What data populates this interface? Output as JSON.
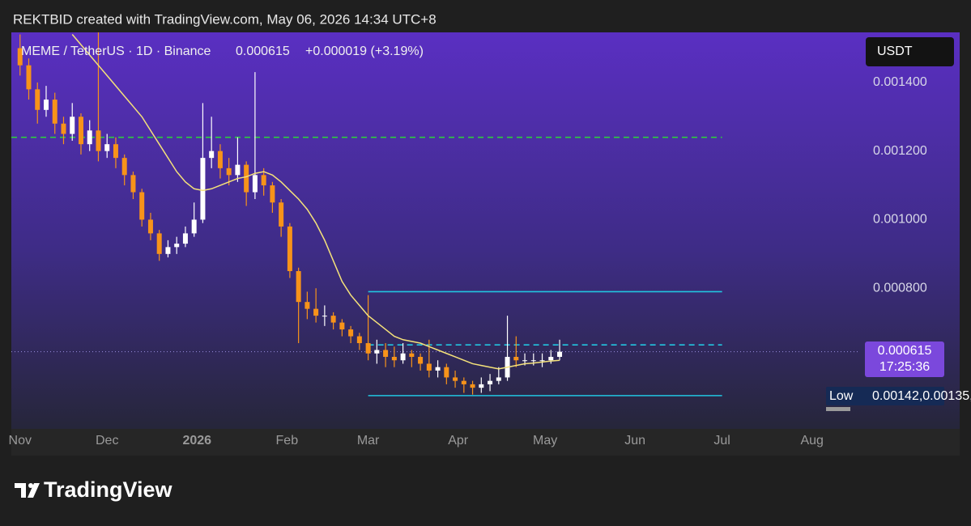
{
  "header": {
    "attribution": "REKTBID created with TradingView.com, May 06, 2026 14:34 UTC+8",
    "brand": "TradingView"
  },
  "chart_data": {
    "type": "candlestick",
    "title": "MEME / TetherUS · 1D · Binance",
    "last_price": 0.000615,
    "change": "+0.000019 (+3.19%)",
    "currency": "USDT",
    "countdown": "17:25:36",
    "low_label": "Low",
    "low": [
      0.00142,
      0.00135,
      0.00128,
      0.0013,
      0.00125,
      0.00122,
      0.00123,
      0.00119,
      0.0012,
      0.00117,
      0.00118,
      0.00115,
      0.0011,
      0.00106,
      0.00098,
      0.00094,
      0.00088,
      0.00089,
      0.0009,
      0.00092,
      0.00095,
      0.00099,
      0.00115,
      0.00112,
      0.0011,
      0.00111,
      0.00104,
      0.00106,
      0.00107,
      0.00102,
      0.00095,
      0.00083,
      0.00064,
      0.00071,
      0.0007,
      0.00069,
      0.00068,
      0.00066,
      0.00064,
      0.00062,
      0.00059,
      0.00058,
      0.00057,
      0.00057,
      0.00058,
      0.00057,
      0.00056,
      0.00054,
      0.00054,
      0.00052,
      0.00051,
      0.000495,
      0.00049,
      0.000495,
      0.0005,
      0.00052,
      0.00053,
      0.00057,
      0.000575,
      0.000575,
      0.00057,
      0.00058,
      0.00059
    ],
    "up_color": "#ffffff",
    "down_color": "#f7931a",
    "x": [
      0,
      3,
      6,
      9,
      12,
      15,
      18,
      21,
      24,
      27,
      30,
      33,
      36,
      39,
      42,
      45,
      48,
      51,
      54,
      57,
      60,
      63,
      66,
      69,
      72,
      75,
      78,
      81,
      84,
      87,
      90,
      93,
      96,
      99,
      102,
      105,
      108,
      111,
      114,
      117,
      120,
      123,
      126,
      129,
      132,
      135,
      138,
      141,
      144,
      147,
      150,
      153,
      156,
      159,
      162,
      165,
      168,
      171,
      174,
      177,
      180,
      183,
      186
    ],
    "open": [
      0.0015,
      0.00145,
      0.00138,
      0.00132,
      0.00135,
      0.00128,
      0.00125,
      0.0013,
      0.00122,
      0.00126,
      0.0012,
      0.00122,
      0.00118,
      0.00113,
      0.00108,
      0.001,
      0.00096,
      0.0009,
      0.00092,
      0.00093,
      0.00096,
      0.001,
      0.00118,
      0.0012,
      0.00115,
      0.00113,
      0.00116,
      0.00108,
      0.00113,
      0.0011,
      0.00105,
      0.00098,
      0.00085,
      0.00076,
      0.00074,
      0.00072,
      0.00072,
      0.0007,
      0.00068,
      0.00066,
      0.00064,
      0.00061,
      0.00062,
      0.0006,
      0.00059,
      0.00061,
      0.0006,
      0.00058,
      0.00056,
      0.00057,
      0.00054,
      0.00053,
      0.00052,
      0.00051,
      0.00052,
      0.00053,
      0.00054,
      0.0006,
      0.00059,
      0.00059,
      0.00059,
      0.00059,
      0.0006
    ],
    "high": [
      0.00154,
      0.00147,
      0.0014,
      0.00139,
      0.00137,
      0.0013,
      0.00134,
      0.00131,
      0.00129,
      0.00155,
      0.00125,
      0.00124,
      0.00119,
      0.00114,
      0.00109,
      0.00102,
      0.00097,
      0.00094,
      0.00095,
      0.00098,
      0.00105,
      0.00134,
      0.0013,
      0.00122,
      0.00118,
      0.00124,
      0.00117,
      0.00143,
      0.00115,
      0.00111,
      0.00106,
      0.00099,
      0.00086,
      0.00079,
      0.0008,
      0.00075,
      0.00073,
      0.00071,
      0.00069,
      0.00067,
      0.00078,
      0.00065,
      0.00064,
      0.00063,
      0.00064,
      0.00062,
      0.00061,
      0.00065,
      0.00059,
      0.00058,
      0.00056,
      0.00054,
      0.00053,
      0.00054,
      0.00055,
      0.00057,
      0.00072,
      0.00066,
      0.00061,
      0.00061,
      0.00061,
      0.00062,
      0.00065
    ],
    "close": [
      0.00145,
      0.00138,
      0.00132,
      0.00135,
      0.00128,
      0.00125,
      0.0013,
      0.00122,
      0.00126,
      0.0012,
      0.00122,
      0.00118,
      0.00113,
      0.00108,
      0.001,
      0.00096,
      0.0009,
      0.00092,
      0.00093,
      0.00096,
      0.001,
      0.00118,
      0.0012,
      0.00115,
      0.00113,
      0.00116,
      0.00108,
      0.00113,
      0.0011,
      0.00105,
      0.00098,
      0.00085,
      0.00076,
      0.00074,
      0.00072,
      0.00072,
      0.0007,
      0.00068,
      0.00066,
      0.00064,
      0.00061,
      0.00062,
      0.0006,
      0.00059,
      0.00061,
      0.0006,
      0.00058,
      0.00056,
      0.00057,
      0.00054,
      0.00053,
      0.00052,
      0.00051,
      0.00052,
      0.00053,
      0.00054,
      0.0006,
      0.00059,
      0.00059,
      0.00059,
      0.00059,
      0.0006,
      0.000615
    ],
    "ma": {
      "color": "#f5e27a",
      "values": [
        null,
        null,
        null,
        null,
        null,
        null,
        0.00154,
        0.00151,
        0.00148,
        0.00145,
        0.00142,
        0.00139,
        0.00136,
        0.00133,
        0.0013,
        0.00126,
        0.00122,
        0.00118,
        0.00114,
        0.00111,
        0.00109,
        0.001085,
        0.00109,
        0.0011,
        0.00111,
        0.00112,
        0.001125,
        0.001135,
        0.00114,
        0.00113,
        0.00111,
        0.001085,
        0.00106,
        0.00103,
        0.00099,
        0.00094,
        0.00088,
        0.00082,
        0.00078,
        0.00075,
        0.00072,
        0.0007,
        0.00068,
        0.00066,
        0.00065,
        0.000645,
        0.00064,
        0.00063,
        0.00062,
        0.00061,
        0.0006,
        0.00059,
        0.00058,
        0.000575,
        0.00057,
        0.000565,
        0.00057,
        0.000575,
        0.00058,
        0.000582,
        0.000585,
        0.000588,
        0.00059
      ]
    },
    "levels": [
      {
        "value": 0.00124,
        "color": "#2ecc40",
        "dashed": true,
        "end": 242
      },
      {
        "value": 0.00079,
        "color": "#22c5e0",
        "dashed": false,
        "start": 120,
        "end": 242
      },
      {
        "value": 0.000635,
        "color": "#22c5e0",
        "dashed": true,
        "start": 120,
        "end": 242
      },
      {
        "value": 0.000487,
        "color": "#22c5e0",
        "dashed": false,
        "start": 120,
        "end": 242
      }
    ],
    "xlim": [
      -3,
      289
    ],
    "xticks": [
      {
        "value": 0,
        "label": "Nov"
      },
      {
        "value": 30,
        "label": "Dec"
      },
      {
        "value": 61,
        "label": "2026"
      },
      {
        "value": 92,
        "label": "Feb"
      },
      {
        "value": 120,
        "label": "Mar"
      },
      {
        "value": 151,
        "label": "Apr"
      },
      {
        "value": 181,
        "label": "May"
      },
      {
        "value": 212,
        "label": "Jun"
      },
      {
        "value": 242,
        "label": "Jul"
      },
      {
        "value": 273,
        "label": "Aug"
      }
    ],
    "ylim": [
      0.00039,
      0.001546
    ],
    "yticks": [
      {
        "value": 0.0008,
        "label": "0.000800"
      },
      {
        "value": 0.001,
        "label": "0.001000"
      },
      {
        "value": 0.0012,
        "label": "0.001200"
      },
      {
        "value": 0.0014,
        "label": "0.001400"
      }
    ]
  }
}
